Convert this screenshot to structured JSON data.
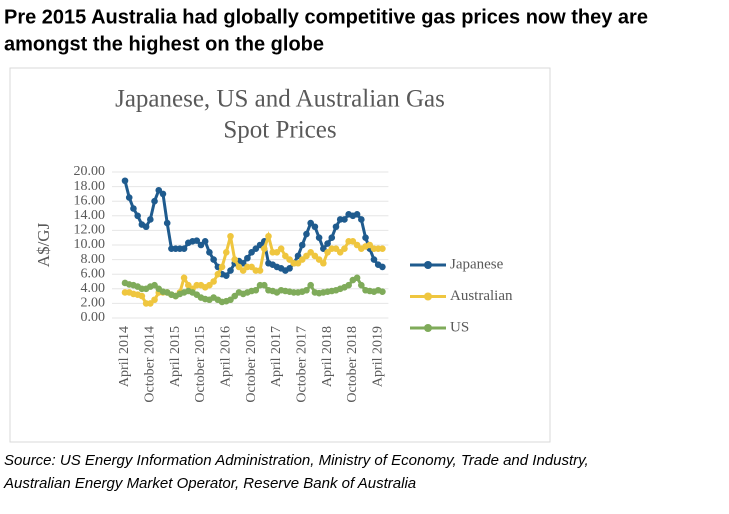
{
  "heading": [
    "Pre 2015 Australia had globally competitive gas prices now they are",
    "amongst the highest on the globe"
  ],
  "source": [
    "Source: US Energy Information Administration, Ministry of Economy, Trade and Industry,",
    "Australian Energy Market Operator, Reserve Bank of Australia"
  ],
  "chart_data": {
    "type": "line",
    "title": [
      "Japanese, US and Australian Gas",
      "Spot Prices"
    ],
    "y_label": "A$/GJ",
    "categories": [
      "April 2014",
      null,
      null,
      null,
      null,
      null,
      "October 2014",
      null,
      null,
      null,
      null,
      null,
      "April 2015",
      null,
      null,
      null,
      null,
      null,
      "October 2015",
      null,
      null,
      null,
      null,
      null,
      "April 2016",
      null,
      null,
      null,
      null,
      null,
      "October 2016",
      null,
      null,
      null,
      null,
      null,
      "April 2017",
      null,
      null,
      null,
      null,
      null,
      "October 2017",
      null,
      null,
      null,
      null,
      null,
      "April 2018",
      null,
      null,
      null,
      null,
      null,
      "October 2018",
      null,
      null,
      null,
      null,
      null,
      "April 2019",
      null
    ],
    "series": [
      {
        "name": "Japanese",
        "color": "#1f5b8e",
        "values": [
          18.8,
          16.5,
          15,
          14,
          12.8,
          12.5,
          13.5,
          16,
          17.5,
          17,
          13,
          9.5,
          9.5,
          9.5,
          9.5,
          10.3,
          10.5,
          10.6,
          10,
          10.5,
          9,
          8,
          7,
          6,
          5.8,
          6.5,
          7.5,
          7.8,
          7.5,
          8.2,
          9,
          9.5,
          10,
          10.5,
          7.5,
          7.3,
          7,
          6.8,
          6.5,
          6.8,
          7.5,
          8.5,
          10,
          11.5,
          13,
          12.5,
          11,
          9.5,
          10.2,
          11,
          12.5,
          13.5,
          13.5,
          14.2,
          14,
          14.2,
          13.5,
          11,
          9.5,
          8,
          7.3,
          7
        ]
      },
      {
        "name": "Australian",
        "color": "#efc63f",
        "values": [
          3.5,
          3.5,
          3.3,
          3.2,
          3,
          2,
          2,
          2.5,
          3.5,
          3.5,
          3.5,
          3.2,
          3,
          3.5,
          5.5,
          4.5,
          4,
          4.5,
          4.5,
          4.2,
          4.5,
          5,
          6,
          7,
          9,
          11.2,
          8,
          7,
          6.5,
          7,
          7,
          6.5,
          6.5,
          9.5,
          11.2,
          9,
          9,
          9.5,
          8.5,
          8,
          7.5,
          7.5,
          8,
          8.5,
          9,
          8.5,
          8,
          7.5,
          9,
          9.5,
          9.5,
          9,
          9.5,
          10.5,
          10.5,
          10,
          9.5,
          9.8,
          10,
          9.5,
          9.5,
          9.5
        ]
      },
      {
        "name": "US",
        "color": "#7fab5a",
        "values": [
          4.8,
          4.6,
          4.5,
          4.3,
          4,
          4,
          4.3,
          4.5,
          4,
          3.6,
          3.5,
          3.2,
          3,
          3.3,
          3.5,
          3.7,
          3.5,
          3.2,
          2.8,
          2.6,
          2.5,
          2.8,
          2.5,
          2.2,
          2.3,
          2.5,
          3,
          3.5,
          3.3,
          3.5,
          3.7,
          3.8,
          4.5,
          4.5,
          3.8,
          3.7,
          3.5,
          3.8,
          3.7,
          3.6,
          3.5,
          3.5,
          3.6,
          3.8,
          4.5,
          3.5,
          3.4,
          3.5,
          3.6,
          3.7,
          3.8,
          4,
          4.2,
          4.5,
          5.2,
          5.5,
          4.5,
          3.8,
          3.7,
          3.6,
          3.8,
          3.6
        ]
      }
    ],
    "ylim": [
      0,
      20
    ],
    "yticks": [
      {
        "value": 0,
        "label": "0.00"
      },
      {
        "value": 2,
        "label": "2.00"
      },
      {
        "value": 4,
        "label": "4.00"
      },
      {
        "value": 6,
        "label": "6.00"
      },
      {
        "value": 8,
        "label": "8.00"
      },
      {
        "value": 10,
        "label": "10.00"
      },
      {
        "value": 12,
        "label": "12.00"
      },
      {
        "value": 14,
        "label": "14.00"
      },
      {
        "value": 16,
        "label": "16.00"
      },
      {
        "value": 18,
        "label": "18.00"
      },
      {
        "value": 20,
        "label": "20.00"
      }
    ],
    "grid": true,
    "legend": "right"
  }
}
